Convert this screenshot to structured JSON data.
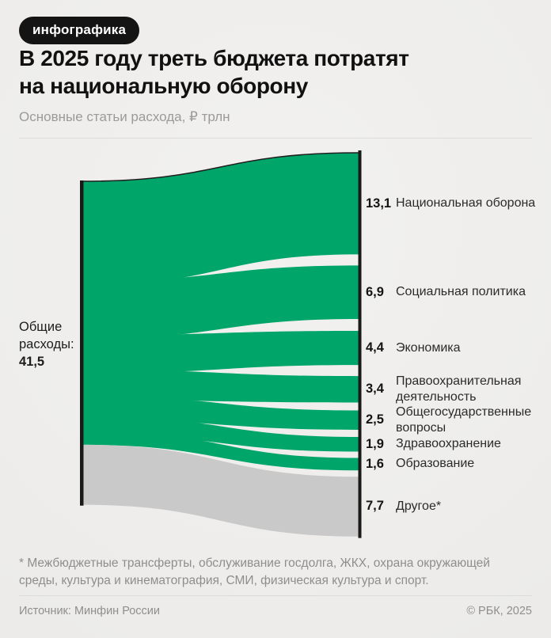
{
  "badge": {
    "label": "инфографика"
  },
  "header": {
    "title": "В 2025 году треть бюджета потратят\nна национальную оборону",
    "subtitle": "Основные статьи расхода, ₽ трлн"
  },
  "chart_data": {
    "type": "sankey",
    "title": "Основные статьи расхода, ₽ трлн",
    "unit": "₽ трлн",
    "source_node": {
      "label": "Общие расходы:",
      "value": 41.5,
      "value_text": "41,5"
    },
    "flows": [
      {
        "label": "Национальная оборона",
        "value": 13.1,
        "value_text": "13,1",
        "color_key": "green"
      },
      {
        "label": "Социальная политика",
        "value": 6.9,
        "value_text": "6,9",
        "color_key": "green"
      },
      {
        "label": "Экономика",
        "value": 4.4,
        "value_text": "4,4",
        "color_key": "green"
      },
      {
        "label": "Правоохранительная деятельность",
        "value": 3.4,
        "value_text": "3,4",
        "color_key": "green"
      },
      {
        "label": "Общегосударственные вопросы",
        "value": 2.5,
        "value_text": "2,5",
        "color_key": "green"
      },
      {
        "label": "Здравоохранение",
        "value": 1.9,
        "value_text": "1,9",
        "color_key": "green"
      },
      {
        "label": "Образование",
        "value": 1.6,
        "value_text": "1,6",
        "color_key": "green"
      },
      {
        "label": "Другое*",
        "value": 7.7,
        "value_text": "7,7",
        "color_key": "gray"
      }
    ],
    "colors": {
      "green": "#00a669",
      "gray": "#c9c9c9",
      "bar_black": "#1a1a1a",
      "top_outline": "#1f1f1f"
    },
    "layout_hints": {
      "orientation": "left-to-right",
      "left_contiguous": true,
      "right_gapped": true
    }
  },
  "footnote": {
    "text": "* Межбюджетные трансферты, обслуживание госдолга, ЖКХ, охрана окружающей\nсреды, культура и кинематография, СМИ, физическая культура и спорт."
  },
  "footer": {
    "source": "Источник: Минфин России",
    "copyright": "© РБК, 2025"
  }
}
